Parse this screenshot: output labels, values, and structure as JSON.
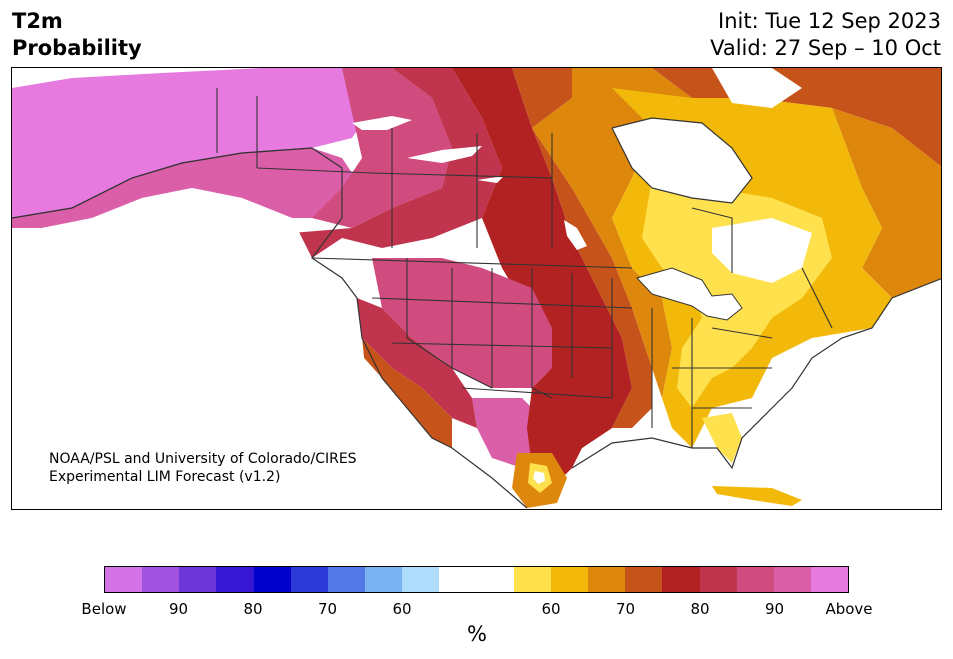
{
  "title": {
    "line1": "T2m",
    "line2": "Probability"
  },
  "init_text": "Init: Tue 12 Sep 2023",
  "valid_text": "Valid: 27 Sep – 10 Oct",
  "credit": {
    "line1": "NOAA/PSL and University of Colorado/CIRES",
    "line2": "Experimental LIM Forecast (v1.2)"
  },
  "colorbar": {
    "colors": [
      "#d373e6",
      "#a253e0",
      "#6d36d8",
      "#3618d4",
      "#0000cc",
      "#2c3ad8",
      "#5578e8",
      "#7ab2f2",
      "#b0dcfb",
      "#ffffff",
      "#ffffff",
      "#ffe14e",
      "#f2b90a",
      "#de870d",
      "#c6531a",
      "#b22222",
      "#c0354d",
      "#d04c7e",
      "#db5fa8",
      "#e67ade"
    ],
    "tick_labels": [
      "Below",
      "90",
      "80",
      "70",
      "60",
      "60",
      "70",
      "80",
      "90",
      "Above"
    ],
    "unit": "%"
  },
  "colors": {
    "above_pink": "#e67ade",
    "pink_90": "#db5fa8",
    "rose_85": "#d04c7e",
    "crimson_80": "#c0354d",
    "red_75": "#b22222",
    "rust_70": "#c6531a",
    "orange_65": "#de870d",
    "gold_60": "#f2b90a",
    "yellow_55": "#ffe14e",
    "border": "#333333"
  }
}
